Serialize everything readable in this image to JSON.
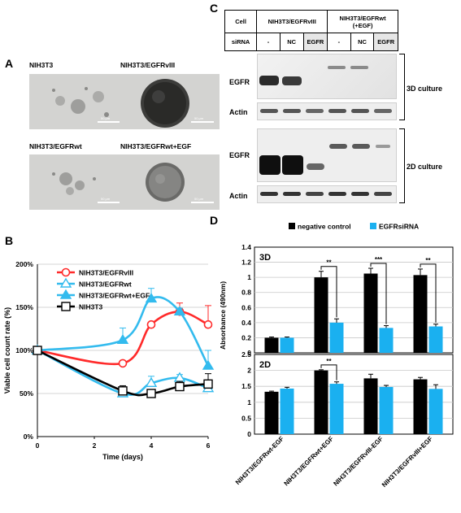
{
  "panels": {
    "a": "A",
    "b": "B",
    "c": "C",
    "d": "D"
  },
  "panel_a": {
    "images": [
      {
        "label": "NIH3T3",
        "scale": "50 μm"
      },
      {
        "label": "NIH3T3/EGFRvIII",
        "scale": "50 μm"
      },
      {
        "label": "NIH3T3/EGFRwt",
        "scale": "50 μm"
      },
      {
        "label": "NIH3T3/EGFRwt+EGF",
        "scale": "50 μm"
      }
    ]
  },
  "panel_c": {
    "header": {
      "cell_label": "Cell",
      "cell_group1": "NIH3T3/EGFRvIII",
      "cell_group2_line1": "NIH3T3/EGFRwt",
      "cell_group2_line2": "(+EGF)",
      "sirna_label": "siRNA",
      "lanes": [
        "-",
        "NC",
        "EGFR",
        "-",
        "NC",
        "EGFR"
      ]
    },
    "rows": {
      "egfr": "EGFR",
      "actin": "Actin"
    },
    "cultures": {
      "c3d": "3D culture",
      "c2d": "2D culture"
    },
    "bands_3d_egfr": [
      0.9,
      0.85,
      0.05,
      0.35,
      0.4,
      0.1
    ],
    "bands_2d_egfr": [
      1.0,
      1.0,
      0.45,
      0.5,
      0.5,
      0.25
    ]
  },
  "chart_data": [
    {
      "type": "line",
      "panel": "B",
      "ylabel": "Viable cell count rate (%)",
      "xlabel": "Time (days)",
      "xlim": [
        0,
        6
      ],
      "ylim": [
        0,
        200
      ],
      "x_ticks": [
        "0",
        "2",
        "4",
        "6"
      ],
      "y_ticks": [
        "0%",
        "50%",
        "100%",
        "150%",
        "200%"
      ],
      "legend_position": "top-right",
      "series": [
        {
          "name": "NIH3T3/EGFRvIII",
          "color": "#ff2a2a",
          "marker": "circle",
          "x": [
            0,
            3,
            4,
            5,
            6
          ],
          "y": [
            100,
            85,
            130,
            145,
            130
          ],
          "err": [
            0,
            0,
            0,
            10,
            22
          ]
        },
        {
          "name": "NIH3T3/EGFRwt",
          "color": "#33bbee",
          "marker": "triangle-open",
          "x": [
            0,
            3,
            4,
            5,
            6
          ],
          "y": [
            100,
            50,
            62,
            68,
            56
          ],
          "err": [
            0,
            5,
            8,
            4,
            6
          ]
        },
        {
          "name": "NIH3T3/EGFRwt+EGF",
          "color": "#33bbee",
          "marker": "triangle-filled",
          "x": [
            0,
            3,
            4,
            5,
            6
          ],
          "y": [
            100,
            112,
            160,
            145,
            82
          ],
          "err": [
            0,
            14,
            12,
            4,
            18
          ]
        },
        {
          "name": "NIH3T3",
          "color": "#000000",
          "marker": "square-open",
          "x": [
            0,
            3,
            4,
            5,
            6
          ],
          "y": [
            100,
            53,
            50,
            58,
            61
          ],
          "err": [
            0,
            6,
            3,
            6,
            12
          ]
        }
      ]
    },
    {
      "type": "bar",
      "panel": "D",
      "ylabel": "Absorbance  (490nm)",
      "categories": [
        "NIH3T3/EGFRwt-EGF",
        "NIH3T3/EGFRwt+EGF",
        "NIH3T3/EGFRvIII-EGF",
        "NIH3T3/EGFRvIII+EGF"
      ],
      "legend_position": "top",
      "subplots": [
        {
          "label": "3D",
          "ylim": [
            0,
            1.4
          ],
          "y_ticks": [
            "0",
            "0.2",
            "0.4",
            "0.6",
            "0.8",
            "1",
            "1.2",
            "1.4"
          ],
          "series": [
            {
              "name": "negative control",
              "color": "#000000",
              "values": [
                0.2,
                1.0,
                1.05,
                1.03
              ],
              "err": [
                0.01,
                0.08,
                0.07,
                0.08
              ]
            },
            {
              "name": "EGFRsiRNA",
              "color": "#1ab0f0",
              "values": [
                0.2,
                0.4,
                0.33,
                0.35
              ],
              "err": [
                0.01,
                0.05,
                0.03,
                0.03
              ]
            }
          ],
          "significance": [
            "",
            "**",
            "***",
            "**"
          ]
        },
        {
          "label": "2D",
          "ylim": [
            0,
            2.5
          ],
          "y_ticks": [
            "0",
            "0.5",
            "1",
            "1.5",
            "2",
            "2.5"
          ],
          "series": [
            {
              "name": "negative control",
              "color": "#000000",
              "values": [
                1.33,
                2.0,
                1.75,
                1.72
              ],
              "err": [
                0.02,
                0.02,
                0.13,
                0.06
              ]
            },
            {
              "name": "EGFRsiRNA",
              "color": "#1ab0f0",
              "values": [
                1.43,
                1.58,
                1.48,
                1.42
              ],
              "err": [
                0.04,
                0.06,
                0.05,
                0.13
              ]
            }
          ],
          "significance": [
            "",
            "**",
            "",
            ""
          ]
        }
      ]
    }
  ]
}
